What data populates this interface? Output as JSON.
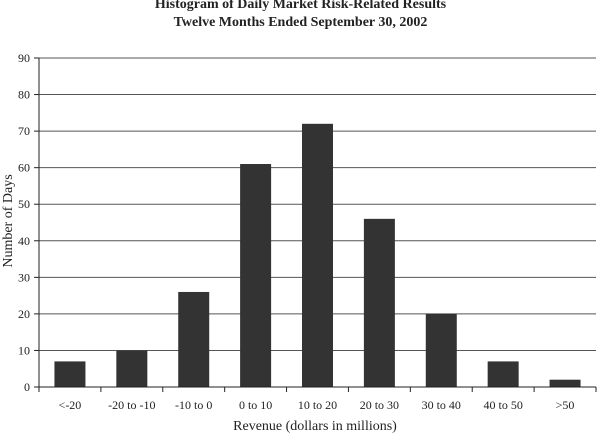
{
  "chart_data": {
    "type": "bar",
    "title": "Histogram of Daily Market Risk-Related Results",
    "subtitle": "Twelve Months Ended September 30, 2002",
    "xlabel": "Revenue (dollars in millions)",
    "ylabel": "Number of Days",
    "categories": [
      "<-20",
      "-20 to -10",
      "-10 to 0",
      "0 to 10",
      "10 to 20",
      "20 to 30",
      "30 to 40",
      "40 to 50",
      ">50"
    ],
    "values": [
      7,
      10,
      26,
      61,
      72,
      46,
      20,
      7,
      2
    ],
    "ylim": [
      0,
      90
    ],
    "yticks": [
      0,
      10,
      20,
      30,
      40,
      50,
      60,
      70,
      80,
      90
    ],
    "grid": true,
    "legend": "none",
    "bar_color": "#333333",
    "grid_color": "#555555"
  }
}
